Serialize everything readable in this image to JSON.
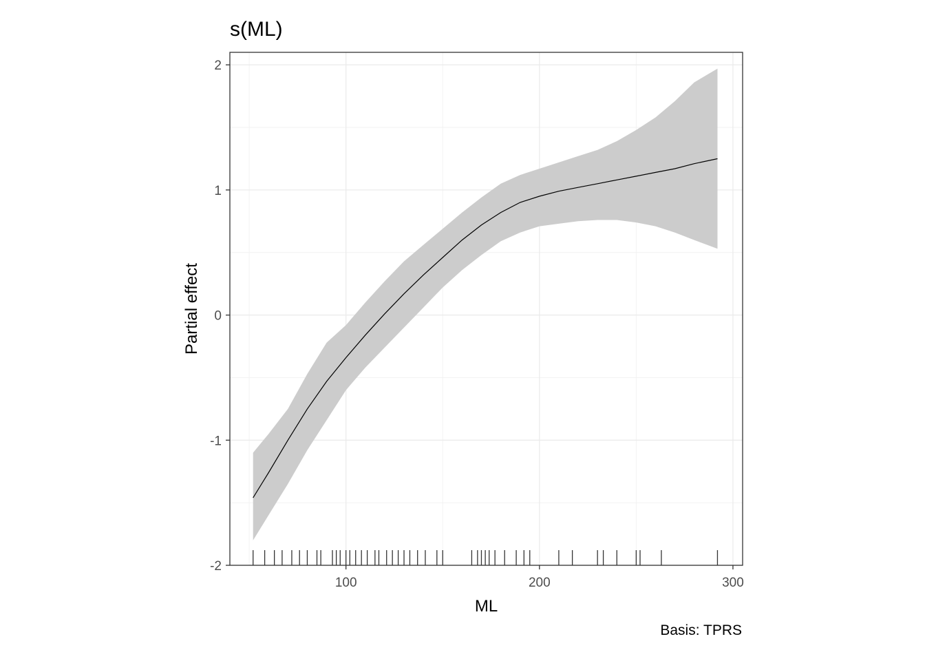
{
  "chart_data": {
    "type": "line",
    "title": "s(ML)",
    "xlabel": "ML",
    "ylabel": "Partial effect",
    "caption": "Basis: TPRS",
    "xlim": [
      40,
      305
    ],
    "ylim": [
      -2,
      2.1
    ],
    "x_ticks": [
      100,
      200,
      300
    ],
    "y_ticks": [
      -2,
      -1,
      0,
      1,
      2
    ],
    "grid": true,
    "colors": {
      "band": "#cccccc",
      "line": "#000000",
      "grid": "#ebebeb",
      "rug": "#333333"
    },
    "series": [
      {
        "x": [
          52,
          60,
          70,
          80,
          90,
          100,
          110,
          120,
          130,
          140,
          150,
          160,
          170,
          180,
          190,
          200,
          210,
          220,
          230,
          240,
          250,
          260,
          270,
          280,
          292
        ],
        "y": [
          -1.46,
          -1.26,
          -1.0,
          -0.75,
          -0.53,
          -0.34,
          -0.16,
          0.01,
          0.17,
          0.32,
          0.46,
          0.6,
          0.72,
          0.82,
          0.9,
          0.95,
          0.99,
          1.02,
          1.05,
          1.08,
          1.11,
          1.14,
          1.17,
          1.21,
          1.25
        ],
        "lower": [
          -1.8,
          -1.6,
          -1.35,
          -1.08,
          -0.84,
          -0.6,
          -0.42,
          -0.26,
          -0.1,
          0.06,
          0.22,
          0.36,
          0.48,
          0.59,
          0.66,
          0.71,
          0.73,
          0.75,
          0.76,
          0.76,
          0.74,
          0.71,
          0.66,
          0.6,
          0.53
        ],
        "upper": [
          -1.1,
          -0.95,
          -0.75,
          -0.47,
          -0.22,
          -0.08,
          0.1,
          0.27,
          0.43,
          0.56,
          0.69,
          0.82,
          0.94,
          1.05,
          1.12,
          1.17,
          1.22,
          1.27,
          1.32,
          1.39,
          1.48,
          1.58,
          1.71,
          1.86,
          1.97
        ]
      }
    ],
    "rug": [
      52,
      58,
      63,
      67,
      72,
      76,
      80,
      85,
      87,
      93,
      95,
      97,
      100,
      102,
      105,
      108,
      111,
      115,
      117,
      121,
      124,
      127,
      130,
      133,
      137,
      141,
      147,
      150,
      165,
      168,
      170,
      172,
      174,
      177,
      182,
      188,
      192,
      195,
      210,
      217,
      230,
      233,
      240,
      250,
      252,
      263,
      292
    ]
  }
}
